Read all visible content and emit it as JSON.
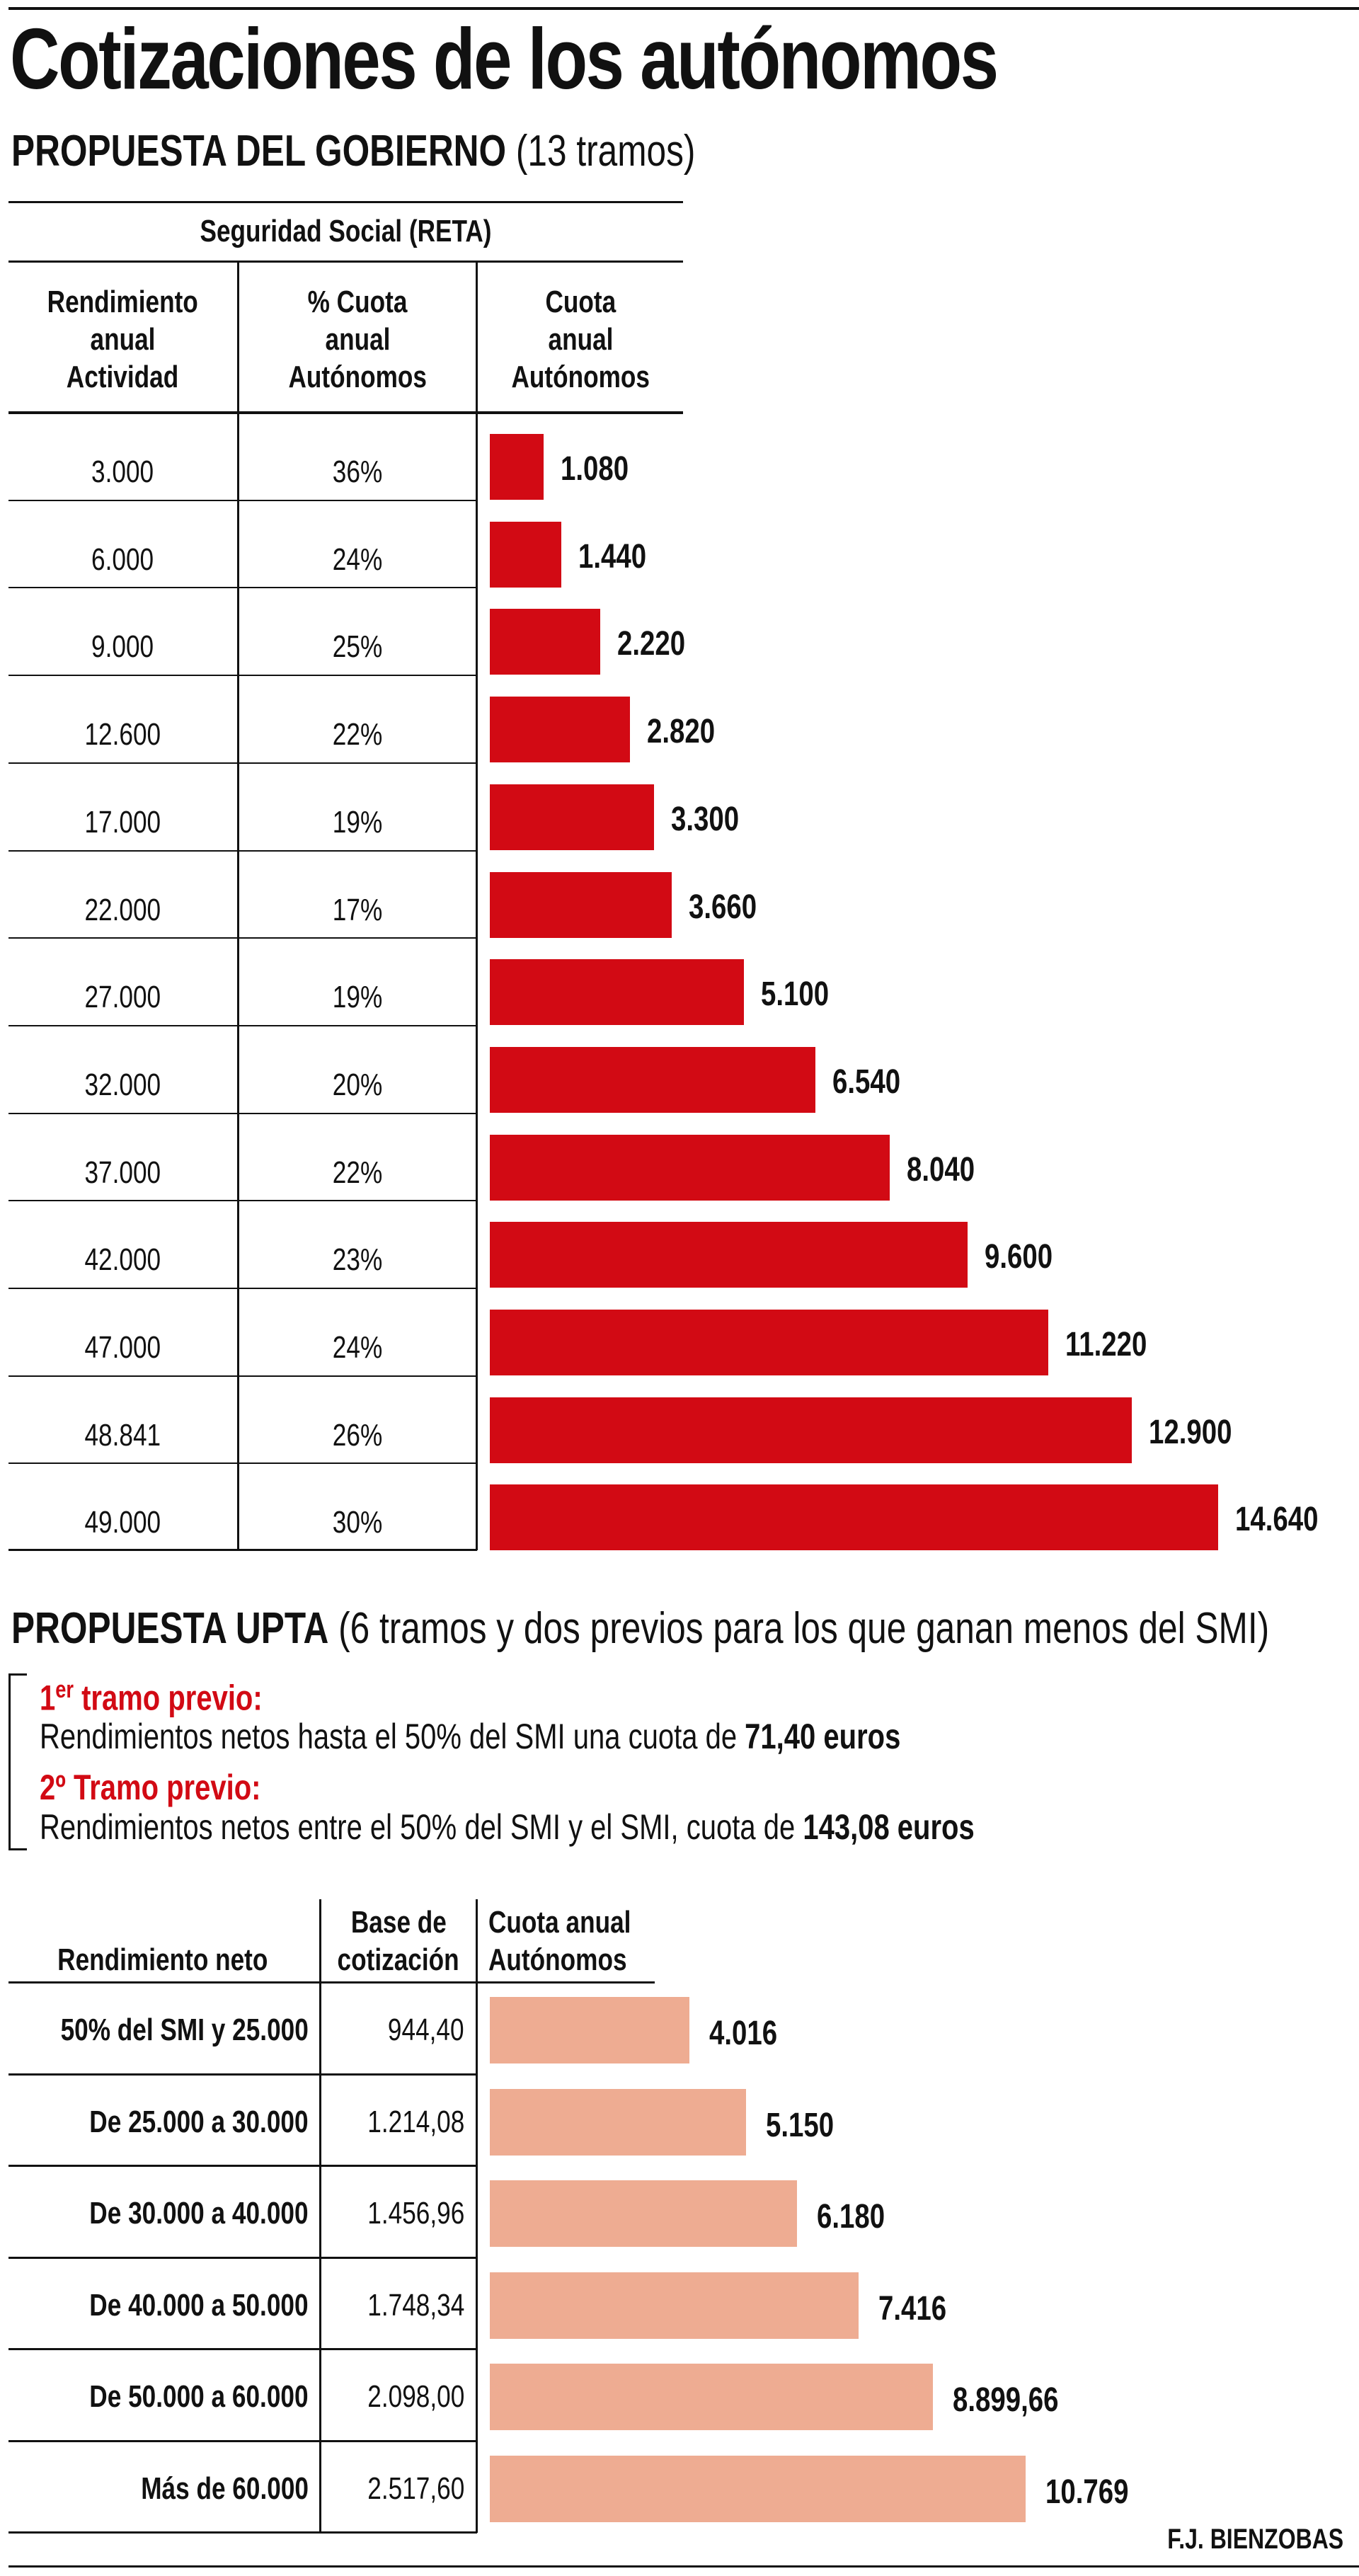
{
  "title": "Cotizaciones de los autónomos",
  "gobierno": {
    "heading": "PROPUESTA DEL GOBIERNO",
    "heading_note": "(13 tramos)",
    "table_title": "Seguridad Social (RETA)",
    "columns": [
      "Rendimiento anual Actividad",
      "% Cuota anual Autónomos",
      "Cuota anual Autónomos"
    ],
    "column_lines": [
      [
        "Rendimiento",
        "anual",
        "Actividad"
      ],
      [
        "% Cuota",
        "anual",
        "Autónomos"
      ],
      [
        "Cuota",
        "anual",
        "Autónomos"
      ]
    ]
  },
  "upta": {
    "heading": "PROPUESTA UPTA",
    "heading_note": "(6 tramos y dos previos para los que ganan menos del SMI)",
    "previo1_label_num": "1",
    "previo1_label_sup": "er",
    "previo1_label": " tramo previo:",
    "previo1_text": "Rendimientos netos hasta el 50% del SMI una  cuota de ",
    "previo1_amount": "71,40 euros",
    "previo2_label": "2º Tramo previo:",
    "previo2_text": "Rendimientos netos entre el 50% del SMI y el SMI, cuota de ",
    "previo2_amount": "143,08 euros",
    "columns": [
      "Rendimiento neto",
      "Base de cotización",
      "Cuota anual Autónomos"
    ],
    "column_lines": [
      [
        "Rendimiento neto"
      ],
      [
        "Base de",
        "cotización"
      ],
      [
        "Cuota anual",
        "Autónomos"
      ]
    ]
  },
  "credit": "F.J. BIENZOBAS",
  "colors": {
    "gobierno_bar": "#D20A14",
    "upta_bar": "#EEAC92"
  },
  "chart_data": [
    {
      "type": "bar",
      "orientation": "horizontal",
      "title": "PROPUESTA DEL GOBIERNO (13 tramos)",
      "categories": [
        "3.000",
        "6.000",
        "9.000",
        "12.600",
        "17.000",
        "22.000",
        "27.000",
        "32.000",
        "37.000",
        "42.000",
        "47.000",
        "48.841",
        "49.000"
      ],
      "percent": [
        "36%",
        "24%",
        "25%",
        "22%",
        "19%",
        "17%",
        "19%",
        "20%",
        "22%",
        "23%",
        "24%",
        "26%",
        "30%"
      ],
      "values": [
        1080,
        1440,
        2220,
        2820,
        3300,
        3660,
        5100,
        6540,
        8040,
        9600,
        11220,
        12900,
        14640
      ],
      "value_labels": [
        "1.080",
        "1.440",
        "2.220",
        "2.820",
        "3.300",
        "3.660",
        "5.100",
        "6.540",
        "8.040",
        "9.600",
        "11.220",
        "12.900",
        "14.640"
      ],
      "grid": false
    },
    {
      "type": "bar",
      "orientation": "horizontal",
      "title": "PROPUESTA UPTA (6 tramos y dos previos para los que ganan menos del SMI)",
      "categories": [
        "50% del SMI y 25.000",
        "De 25.000 a 30.000",
        "De 30.000 a 40.000",
        "De 40.000 a 50.000",
        "De 50.000 a 60.000",
        "Más de 60.000"
      ],
      "base": [
        "944,40",
        "1.214,08",
        "1.456,96",
        "1.748,34",
        "2.098,00",
        "2.517,60"
      ],
      "values": [
        4016,
        5150,
        6180,
        7416,
        8899.66,
        10769
      ],
      "value_labels": [
        "4.016",
        "5.150",
        "6.180",
        "7.416",
        "8.899,66",
        "10.769"
      ],
      "grid": false
    }
  ]
}
